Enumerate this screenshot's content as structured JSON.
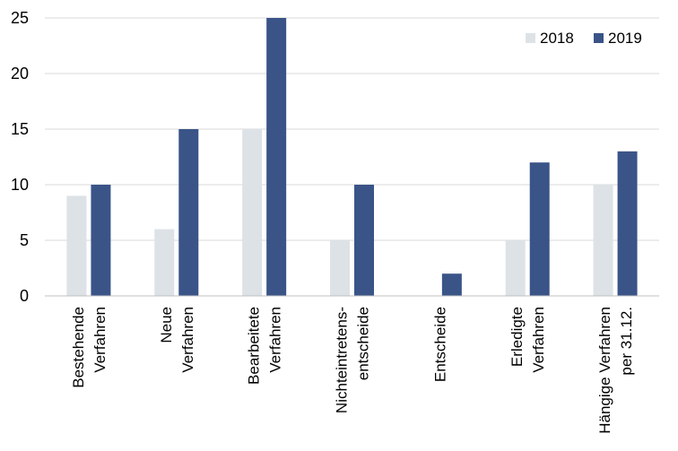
{
  "colors": {
    "series_2018": "#dde2e6",
    "series_2019": "#3a5488"
  },
  "chart_data": {
    "type": "bar",
    "categories": [
      [
        "Bestehende",
        "Verfahren"
      ],
      [
        "Neue",
        "Verfahren"
      ],
      [
        "Bearbeitete",
        "Verfahren"
      ],
      [
        "Nichteintretens-",
        "entscheide"
      ],
      [
        "Entscheide"
      ],
      [
        "Erledigte",
        "Verfahren"
      ],
      [
        "Hängige Verfahren",
        "per 31.12."
      ]
    ],
    "series": [
      {
        "name": "2018",
        "values": [
          9,
          6,
          15,
          5,
          0,
          5,
          10
        ]
      },
      {
        "name": "2019",
        "values": [
          10,
          15,
          25,
          10,
          2,
          12,
          13
        ]
      }
    ],
    "yticks": [
      0,
      5,
      10,
      15,
      20,
      25
    ],
    "ylim": [
      0,
      25
    ],
    "grid": true,
    "legend": "top-right",
    "title": "",
    "xlabel": "",
    "ylabel": ""
  }
}
